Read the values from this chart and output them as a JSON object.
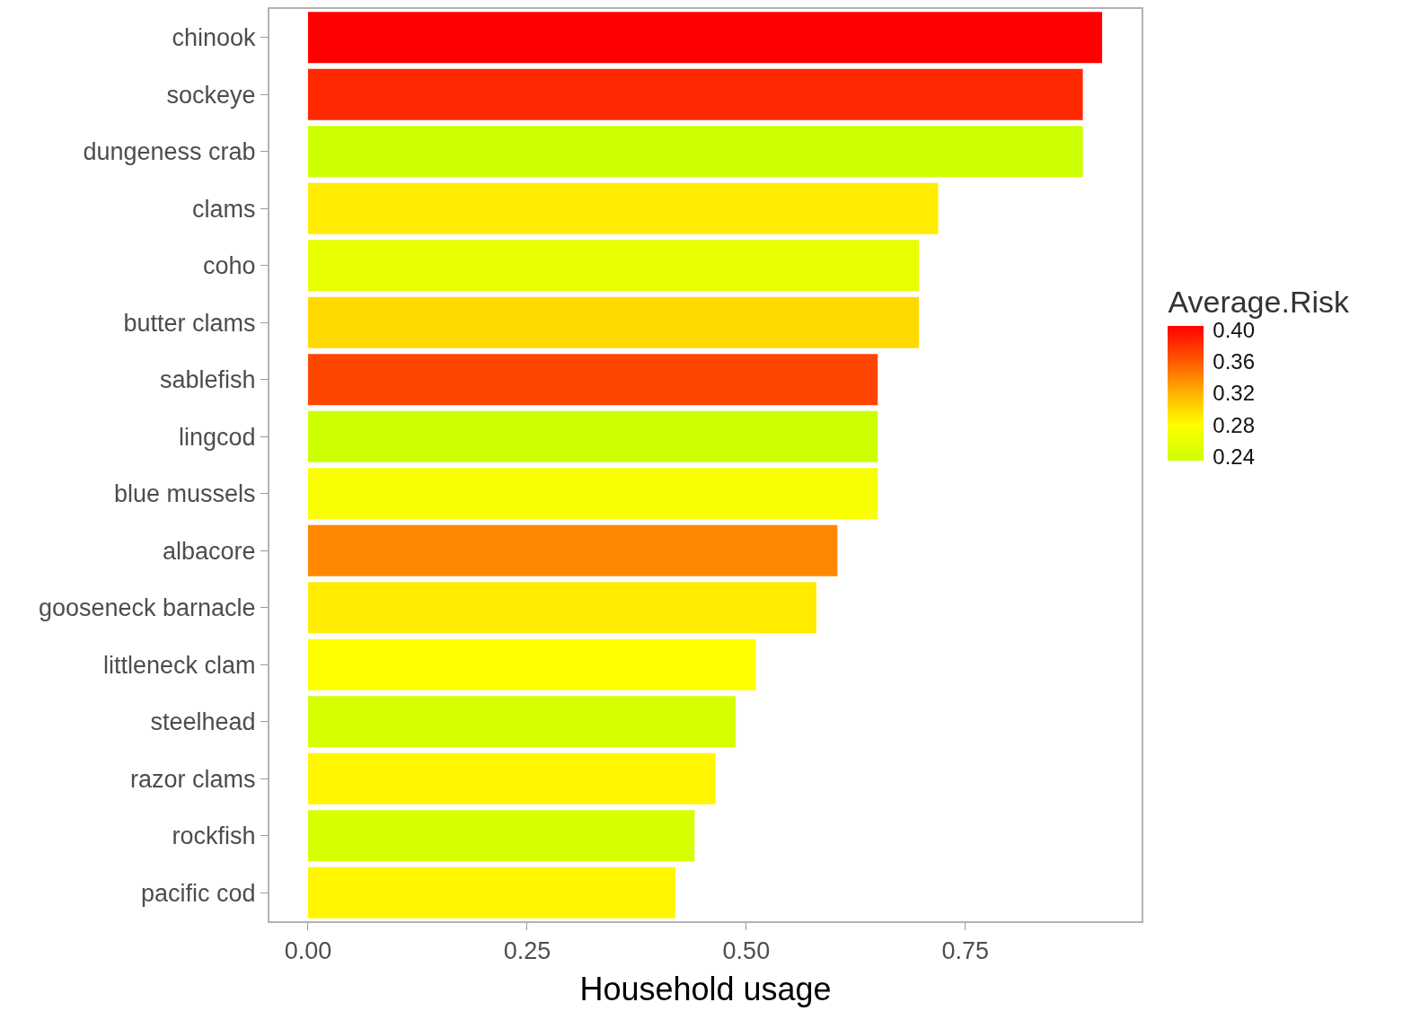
{
  "chart_data": {
    "type": "bar",
    "orientation": "horizontal",
    "xlabel": "Household usage",
    "clabel": "Average.Risk",
    "categories": [
      "chinook",
      "sockeye",
      "dungeness crab",
      "clams",
      "coho",
      "butter clams",
      "sablefish",
      "lingcod",
      "blue mussels",
      "albacore",
      "gooseneck barnacle",
      "littleneck clam",
      "steelhead",
      "razor clams",
      "rockfish",
      "pacific cod"
    ],
    "values": [
      0.906,
      0.884,
      0.884,
      0.719,
      0.697,
      0.697,
      0.65,
      0.65,
      0.65,
      0.604,
      0.58,
      0.511,
      0.488,
      0.465,
      0.441,
      0.419
    ],
    "cvalues": [
      0.405,
      0.385,
      0.235,
      0.29,
      0.26,
      0.3,
      0.37,
      0.235,
      0.275,
      0.34,
      0.29,
      0.28,
      0.245,
      0.285,
      0.245,
      0.285
    ],
    "clim": [
      0.235,
      0.405
    ],
    "cticks": [
      0.24,
      0.28,
      0.32,
      0.36,
      {
        "value": 0.4,
        "label": "0.40"
      }
    ],
    "xlim": [
      -0.044,
      0.951
    ],
    "xticks": [
      {
        "value": 0,
        "label": "0.00"
      },
      0.25,
      {
        "value": 0.5,
        "label": "0.50"
      },
      0.75
    ]
  }
}
